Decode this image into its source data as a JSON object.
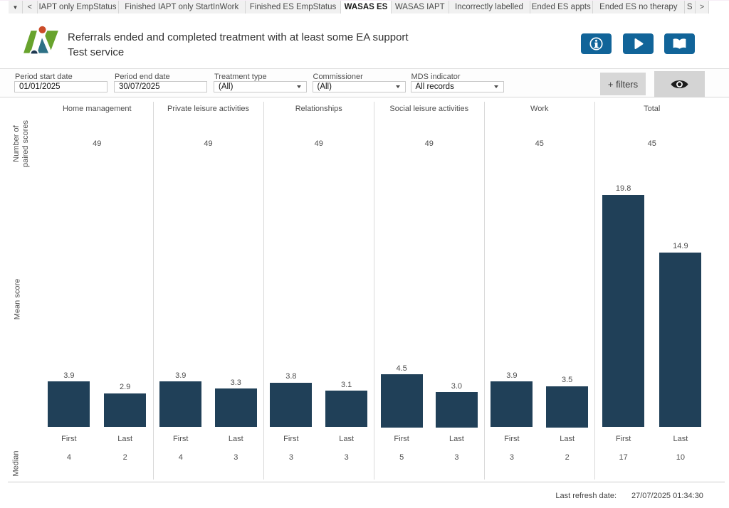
{
  "tabs": {
    "menu_icon": "▼",
    "scroll_left": "<",
    "scroll_right": ">",
    "items": [
      {
        "label": "IAPT only EmpStatus",
        "active": false
      },
      {
        "label": "Finished IAPT only StartInWork",
        "active": false
      },
      {
        "label": "Finished ES EmpStatus",
        "active": false
      },
      {
        "label": "WASAS ES",
        "active": true
      },
      {
        "label": "WASAS IAPT",
        "active": false
      },
      {
        "label": "Incorrectly labelled",
        "active": false
      },
      {
        "label": "Ended ES appts",
        "active": false
      },
      {
        "label": "Ended ES no therapy",
        "active": false
      },
      {
        "label": "S",
        "active": false
      }
    ]
  },
  "header": {
    "title": "Referrals ended and completed treatment with at least some EA support",
    "subtitle": "Test service",
    "buttons": [
      {
        "icon": "info-icon"
      },
      {
        "icon": "play-icon"
      },
      {
        "icon": "book-icon"
      }
    ],
    "button_color": "#116499"
  },
  "filters": {
    "fields": [
      {
        "label": "Period start date",
        "value": "01/01/2025",
        "type": "input"
      },
      {
        "label": "Period end date",
        "value": "30/07/2025",
        "type": "input"
      },
      {
        "label": "Treatment type",
        "value": "(All)",
        "type": "dropdown"
      },
      {
        "label": "Commissioner",
        "value": "(All)",
        "type": "dropdown"
      },
      {
        "label": "MDS indicator",
        "value": "All records",
        "type": "dropdown"
      }
    ],
    "more_filters_label": "+ filters",
    "show_hide_icon": "eye-icon"
  },
  "chart_data": {
    "type": "bar",
    "categories": [
      "Home management",
      "Private leisure activities",
      "Relationships",
      "Social leisure activities",
      "Work",
      "Total"
    ],
    "x_within_category": [
      "First",
      "Last"
    ],
    "row_labels": {
      "paired_scores": "Number of|paired scores",
      "mean": "Mean score",
      "median": "Median"
    },
    "paired_scores": [
      49,
      49,
      49,
      49,
      45,
      45
    ],
    "series_mean": [
      [
        3.9,
        2.9
      ],
      [
        3.9,
        3.3
      ],
      [
        3.8,
        3.1
      ],
      [
        4.5,
        3.0
      ],
      [
        3.9,
        3.5
      ],
      [
        19.8,
        14.9
      ]
    ],
    "series_median": [
      [
        4,
        2
      ],
      [
        4,
        3
      ],
      [
        3,
        3
      ],
      [
        5,
        3
      ],
      [
        3,
        2
      ],
      [
        17,
        10
      ]
    ],
    "bar_color": "#204058",
    "ylim": [
      0,
      22
    ],
    "grid": false,
    "legend": "none"
  },
  "footer": {
    "label": "Last refresh date:",
    "value": "27/07/2025 01:34:30"
  }
}
